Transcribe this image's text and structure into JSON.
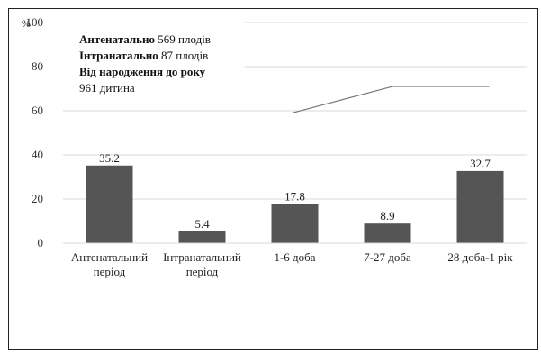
{
  "chart_data": {
    "type": "bar",
    "unit_label": "%",
    "ylim": [
      0,
      100
    ],
    "yticks": [
      "0",
      "20",
      "40",
      "60",
      "80",
      "100"
    ],
    "grid": true,
    "categories": [
      [
        "Антенатальний",
        "період"
      ],
      [
        "Інтранатальний",
        "період"
      ],
      [
        "1-6 доба"
      ],
      [
        "7-27 доба"
      ],
      [
        "28 доба-1 рік"
      ]
    ],
    "values": [
      35.2,
      5.4,
      17.8,
      8.9,
      32.7
    ],
    "value_labels": [
      "35.2",
      "5.4",
      "17.8",
      "8.9",
      "32.7"
    ],
    "bar_color": "#555555",
    "bracket_line": {
      "y_start": 59,
      "y_end": 71,
      "x_from_category": 2,
      "x_to_category": 4
    },
    "annotation": [
      {
        "bold": "Антенатально",
        "normal": " 569 плодів"
      },
      {
        "bold": "Інтранатально",
        "normal": " 87 плодів"
      },
      {
        "bold": "Від народження до року",
        "normal": ""
      },
      {
        "bold": "",
        "normal": "961 дитина"
      }
    ]
  }
}
